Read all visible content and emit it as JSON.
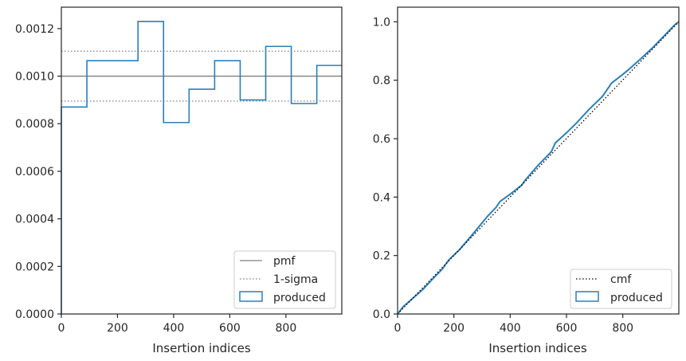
{
  "chart_data": [
    {
      "type": "step-histogram",
      "xlabel": "Insertion indices",
      "ylabel": "",
      "xlim": [
        0,
        999
      ],
      "ylim": [
        0,
        0.00129
      ],
      "xticks": [
        0,
        200,
        400,
        600,
        800
      ],
      "yticks": [
        0.0,
        0.0002,
        0.0004,
        0.0006,
        0.0008,
        0.001,
        0.0012
      ],
      "ytick_labels": [
        "0.0000",
        "0.0002",
        "0.0004",
        "0.0006",
        "0.0008",
        "0.0010",
        "0.0012"
      ],
      "bin_edges": [
        0,
        91,
        182,
        273,
        364,
        455,
        546,
        637,
        728,
        819,
        910,
        999
      ],
      "bin_values": [
        0.00087,
        0.001065,
        0.001065,
        0.00123,
        0.000805,
        0.000945,
        0.001065,
        0.0009,
        0.001125,
        0.000885,
        0.001045
      ],
      "reference_lines": {
        "pmf": 0.001,
        "one_sigma": [
          0.000895,
          0.001105
        ]
      },
      "legend": {
        "location": "lower right",
        "entries": [
          "pmf",
          "1-sigma",
          "produced"
        ]
      },
      "colors": {
        "produced": "#2c7fb8",
        "pmf": "#7f7f7f",
        "sigma": "#7f7f7f"
      },
      "grid": false
    },
    {
      "type": "line",
      "xlabel": "Insertion indices",
      "ylabel": "",
      "xlim": [
        0,
        999
      ],
      "ylim": [
        0,
        1.05
      ],
      "xticks": [
        0,
        200,
        400,
        600,
        800
      ],
      "yticks": [
        0.0,
        0.2,
        0.4,
        0.6,
        0.8,
        1.0
      ],
      "ytick_labels": [
        "0.0",
        "0.2",
        "0.4",
        "0.6",
        "0.8",
        "1.0"
      ],
      "series": [
        {
          "name": "cmf",
          "x": [
            0,
            999
          ],
          "y": [
            0.0,
            1.0
          ]
        },
        {
          "name": "produced",
          "x": [
            0,
            20,
            50,
            91,
            120,
            160,
            182,
            220,
            273,
            320,
            350,
            364,
            400,
            440,
            455,
            500,
            546,
            560,
            600,
            637,
            680,
            728,
            760,
            800,
            819,
            860,
            910,
            950,
            985,
            999
          ],
          "y": [
            0.0,
            0.025,
            0.05,
            0.085,
            0.115,
            0.155,
            0.185,
            0.22,
            0.28,
            0.335,
            0.365,
            0.385,
            0.41,
            0.44,
            0.46,
            0.51,
            0.555,
            0.585,
            0.62,
            0.655,
            0.7,
            0.745,
            0.79,
            0.82,
            0.835,
            0.87,
            0.915,
            0.955,
            0.99,
            1.0
          ]
        }
      ],
      "legend": {
        "location": "lower right",
        "entries": [
          "cmf",
          "produced"
        ]
      },
      "colors": {
        "produced": "#2c7fb8",
        "cmf": "#000000"
      },
      "grid": false
    }
  ]
}
